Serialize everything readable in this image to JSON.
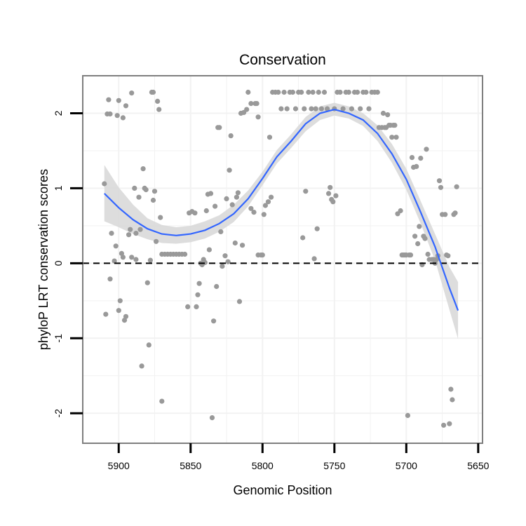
{
  "chart_data": {
    "type": "scatter",
    "title": "Conservation",
    "xlabel": "Genomic Position",
    "ylabel": "phyloP LRT conservation scores",
    "xlim": [
      5925,
      5647
    ],
    "ylim": [
      -2.4,
      2.5
    ],
    "x_reversed": true,
    "xticks": [
      5900,
      5850,
      5800,
      5750,
      5700,
      5650
    ],
    "yticks": [
      -2,
      -1,
      0,
      1,
      2
    ],
    "reference_line": {
      "y": 0,
      "style": "dashed"
    },
    "colors": {
      "points": "#999999",
      "smooth": "#3366ff",
      "ribbon": "#d9d9d9",
      "grid": "#f2f2f2",
      "frame": "#7f7f7f"
    },
    "points": [
      [
        5910,
        1.06
      ],
      [
        5909,
        -0.68
      ],
      [
        5908,
        1.99
      ],
      [
        5907,
        2.18
      ],
      [
        5906,
        1.99
      ],
      [
        5906,
        -0.21
      ],
      [
        5905,
        0.4
      ],
      [
        5903,
        0.03
      ],
      [
        5902,
        0.23
      ],
      [
        5901,
        1.97
      ],
      [
        5900,
        2.17
      ],
      [
        5900,
        -0.63
      ],
      [
        5899,
        -0.5
      ],
      [
        5898,
        0.13
      ],
      [
        5897,
        1.94
      ],
      [
        5897,
        0.08
      ],
      [
        5896,
        -0.76
      ],
      [
        5895,
        2.1
      ],
      [
        5895,
        -0.71
      ],
      [
        5893,
        0.38
      ],
      [
        5892,
        0.45
      ],
      [
        5891,
        2.27
      ],
      [
        5891,
        0.08
      ],
      [
        5889,
        1.0
      ],
      [
        5888,
        0.4
      ],
      [
        5888,
        0.05
      ],
      [
        5886,
        0.88
      ],
      [
        5885,
        0.45
      ],
      [
        5884,
        -1.37
      ],
      [
        5883,
        1.26
      ],
      [
        5882,
        1.0
      ],
      [
        5881,
        0.98
      ],
      [
        5880,
        -0.26
      ],
      [
        5879,
        -1.09
      ],
      [
        5878,
        0.04
      ],
      [
        5877,
        2.28
      ],
      [
        5876,
        2.28
      ],
      [
        5876,
        0.84
      ],
      [
        5875,
        0.96
      ],
      [
        5874,
        0.29
      ],
      [
        5873,
        2.16
      ],
      [
        5872,
        2.05
      ],
      [
        5871,
        0.61
      ],
      [
        5870,
        -1.84
      ],
      [
        5870,
        0.12
      ],
      [
        5868,
        0.12
      ],
      [
        5866,
        0.12
      ],
      [
        5864,
        0.12
      ],
      [
        5862,
        0.12
      ],
      [
        5860,
        0.12
      ],
      [
        5858,
        0.12
      ],
      [
        5856,
        0.12
      ],
      [
        5854,
        0.12
      ],
      [
        5852,
        -0.58
      ],
      [
        5851,
        0.67
      ],
      [
        5849,
        0.69
      ],
      [
        5847,
        0.67
      ],
      [
        5846,
        -0.58
      ],
      [
        5845,
        -0.42
      ],
      [
        5844,
        -0.27
      ],
      [
        5843,
        0.0
      ],
      [
        5842,
        -0.02
      ],
      [
        5841,
        0.05
      ],
      [
        5840,
        0.01
      ],
      [
        5839,
        0.7
      ],
      [
        5838,
        0.92
      ],
      [
        5837,
        0.18
      ],
      [
        5836,
        0.93
      ],
      [
        5835,
        -2.06
      ],
      [
        5834,
        -0.77
      ],
      [
        5833,
        0.76
      ],
      [
        5832,
        -0.31
      ],
      [
        5831,
        1.81
      ],
      [
        5830,
        1.81
      ],
      [
        5829,
        0.42
      ],
      [
        5828,
        -0.04
      ],
      [
        5826,
        0.1
      ],
      [
        5825,
        0.86
      ],
      [
        5824,
        0.02
      ],
      [
        5823,
        1.24
      ],
      [
        5822,
        1.7
      ],
      [
        5821,
        0.78
      ],
      [
        5819,
        0.27
      ],
      [
        5818,
        0.88
      ],
      [
        5817,
        0.94
      ],
      [
        5816,
        -0.51
      ],
      [
        5815,
        2.0
      ],
      [
        5814,
        0.24
      ],
      [
        5813,
        2.01
      ],
      [
        5811,
        2.05
      ],
      [
        5810,
        2.28
      ],
      [
        5808,
        0.73
      ],
      [
        5808,
        2.13
      ],
      [
        5806,
        0.68
      ],
      [
        5805,
        2.13
      ],
      [
        5804,
        2.13
      ],
      [
        5803,
        1.95
      ],
      [
        5803,
        0.11
      ],
      [
        5801,
        0.11
      ],
      [
        5800,
        0.11
      ],
      [
        5799,
        0.65
      ],
      [
        5798,
        0.77
      ],
      [
        5796,
        0.82
      ],
      [
        5795,
        1.68
      ],
      [
        5794,
        0.88
      ],
      [
        5793,
        2.28
      ],
      [
        5791,
        2.28
      ],
      [
        5789,
        2.28
      ],
      [
        5787,
        2.06
      ],
      [
        5785,
        2.28
      ],
      [
        5783,
        2.06
      ],
      [
        5781,
        2.28
      ],
      [
        5779,
        2.28
      ],
      [
        5777,
        2.06
      ],
      [
        5775,
        2.28
      ],
      [
        5773,
        2.28
      ],
      [
        5772,
        0.34
      ],
      [
        5771,
        2.06
      ],
      [
        5770,
        0.96
      ],
      [
        5768,
        2.28
      ],
      [
        5766,
        2.06
      ],
      [
        5765,
        2.28
      ],
      [
        5764,
        0.06
      ],
      [
        5763,
        2.06
      ],
      [
        5762,
        0.46
      ],
      [
        5761,
        2.28
      ],
      [
        5759,
        2.06
      ],
      [
        5757,
        2.28
      ],
      [
        5755,
        2.06
      ],
      [
        5754,
        0.93
      ],
      [
        5753,
        1.01
      ],
      [
        5752,
        0.85
      ],
      [
        5751,
        0.82
      ],
      [
        5750,
        2.06
      ],
      [
        5749,
        0.9
      ],
      [
        5748,
        2.28
      ],
      [
        5746,
        2.28
      ],
      [
        5744,
        2.06
      ],
      [
        5742,
        2.28
      ],
      [
        5740,
        2.28
      ],
      [
        5738,
        2.06
      ],
      [
        5736,
        2.28
      ],
      [
        5734,
        2.28
      ],
      [
        5732,
        2.06
      ],
      [
        5730,
        2.28
      ],
      [
        5728,
        2.28
      ],
      [
        5726,
        2.06
      ],
      [
        5724,
        2.28
      ],
      [
        5722,
        2.28
      ],
      [
        5720,
        2.28
      ],
      [
        5719,
        1.81
      ],
      [
        5717,
        1.81
      ],
      [
        5716,
        2.0
      ],
      [
        5715,
        1.81
      ],
      [
        5714,
        1.81
      ],
      [
        5713,
        1.98
      ],
      [
        5712,
        1.84
      ],
      [
        5711,
        1.84
      ],
      [
        5710,
        1.68
      ],
      [
        5709,
        1.84
      ],
      [
        5708,
        1.84
      ],
      [
        5707,
        1.68
      ],
      [
        5706,
        0.66
      ],
      [
        5704,
        0.7
      ],
      [
        5703,
        0.11
      ],
      [
        5702,
        0.11
      ],
      [
        5701,
        0.11
      ],
      [
        5700,
        0.11
      ],
      [
        5699,
        -2.03
      ],
      [
        5698,
        0.11
      ],
      [
        5697,
        0.11
      ],
      [
        5696,
        1.41
      ],
      [
        5695,
        1.28
      ],
      [
        5694,
        0.36
      ],
      [
        5693,
        1.29
      ],
      [
        5692,
        0.26
      ],
      [
        5691,
        0.49
      ],
      [
        5690,
        1.4
      ],
      [
        5689,
        -0.02
      ],
      [
        5688,
        0.36
      ],
      [
        5687,
        0.33
      ],
      [
        5686,
        1.52
      ],
      [
        5685,
        0.12
      ],
      [
        5684,
        0.05
      ],
      [
        5682,
        0.05
      ],
      [
        5681,
        0.05
      ],
      [
        5680,
        0.0
      ],
      [
        5679,
        0.05
      ],
      [
        5678,
        0.1
      ],
      [
        5677,
        1.1
      ],
      [
        5676,
        1.01
      ],
      [
        5675,
        0.65
      ],
      [
        5674,
        -2.16
      ],
      [
        5673,
        0.65
      ],
      [
        5672,
        0.11
      ],
      [
        5671,
        0.1
      ],
      [
        5670,
        -2.14
      ],
      [
        5669,
        -1.68
      ],
      [
        5668,
        -1.82
      ],
      [
        5667,
        0.65
      ],
      [
        5666,
        0.67
      ],
      [
        5665,
        1.02
      ]
    ],
    "smooth": {
      "x": [
        5910,
        5900,
        5890,
        5880,
        5870,
        5860,
        5850,
        5840,
        5830,
        5820,
        5810,
        5800,
        5790,
        5780,
        5770,
        5760,
        5750,
        5740,
        5730,
        5720,
        5710,
        5700,
        5690,
        5680,
        5670,
        5664
      ],
      "y": [
        0.93,
        0.74,
        0.58,
        0.46,
        0.39,
        0.37,
        0.39,
        0.44,
        0.53,
        0.66,
        0.86,
        1.13,
        1.42,
        1.63,
        1.86,
        2.0,
        2.05,
        2.0,
        1.91,
        1.73,
        1.46,
        1.12,
        0.68,
        0.22,
        -0.33,
        -0.63
      ],
      "lower": [
        0.56,
        0.48,
        0.39,
        0.32,
        0.27,
        0.26,
        0.28,
        0.33,
        0.42,
        0.55,
        0.76,
        1.04,
        1.33,
        1.54,
        1.76,
        1.91,
        1.97,
        1.93,
        1.83,
        1.63,
        1.34,
        0.98,
        0.53,
        0.04,
        -0.62,
        -1.01
      ],
      "upper": [
        1.31,
        1.01,
        0.78,
        0.6,
        0.51,
        0.48,
        0.5,
        0.56,
        0.64,
        0.78,
        0.97,
        1.22,
        1.51,
        1.72,
        1.95,
        2.09,
        2.14,
        2.09,
        2.0,
        1.84,
        1.59,
        1.26,
        0.83,
        0.39,
        -0.05,
        -0.25
      ]
    }
  }
}
